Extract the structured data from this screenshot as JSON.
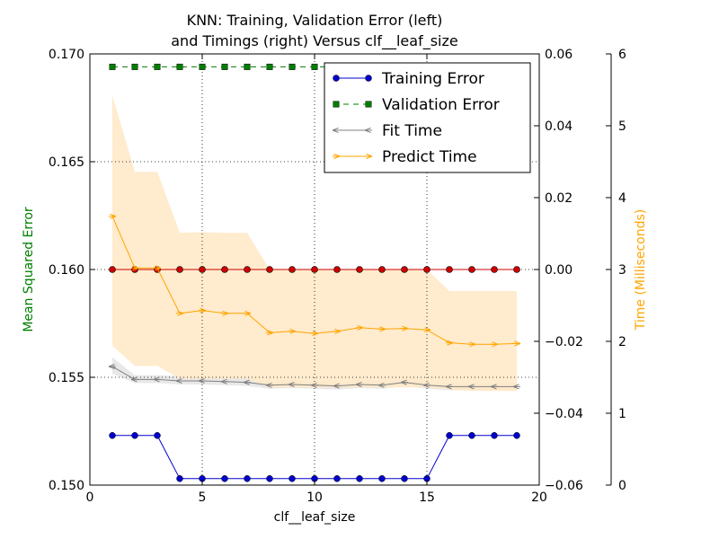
{
  "chart_data": {
    "type": "line",
    "title_lines": [
      "KNN: Training, Validation Error (left)",
      "and Timings (right) Versus clf__leaf_size"
    ],
    "xlabel": "clf__leaf_size",
    "ylabel_left": "Mean Squared Error",
    "ylabel_right": "Time (Milliseconds)",
    "xlim": [
      0,
      20
    ],
    "ylim_left": [
      0.15,
      0.17
    ],
    "ylim_middle": [
      -0.06,
      0.06
    ],
    "ylim_right": [
      0,
      6
    ],
    "x_ticks": [
      "0",
      "5",
      "10",
      "15",
      "20"
    ],
    "y_ticks_left": [
      "0.150",
      "0.155",
      "0.160",
      "0.165",
      "0.170"
    ],
    "y_ticks_middle": [
      "−0.06",
      "−0.04",
      "−0.02",
      "0.00",
      "0.02",
      "0.04",
      "0.06"
    ],
    "y_ticks_right": [
      "0",
      "1",
      "2",
      "3",
      "4",
      "5",
      "6"
    ],
    "grid": true,
    "legend_position": "top-right",
    "colors": {
      "training": "#0000cc",
      "validation": "#007f00",
      "fit": "#808080",
      "predict": "#ffa500",
      "band": "#ffe9c8",
      "zero_line": "#cc0000",
      "ylabel_left": "#008000",
      "ylabel_right": "#ffa500"
    },
    "x": [
      1,
      2,
      3,
      4,
      5,
      6,
      7,
      8,
      9,
      10,
      11,
      12,
      13,
      14,
      15,
      16,
      17,
      18,
      19
    ],
    "series": [
      {
        "name": "Training Error",
        "axis": "left",
        "values": [
          0.1523,
          0.1523,
          0.1523,
          0.1503,
          0.1503,
          0.1503,
          0.1503,
          0.1503,
          0.1503,
          0.1503,
          0.1503,
          0.1503,
          0.1503,
          0.1503,
          0.1503,
          0.1523,
          0.1523,
          0.1523,
          0.1523
        ]
      },
      {
        "name": "Validation Error",
        "axis": "left",
        "values": [
          0.1694,
          0.1694,
          0.1694,
          0.1694,
          0.1694,
          0.1694,
          0.1694,
          0.1694,
          0.1694,
          0.1694,
          0.1694,
          0.1694,
          0.1694,
          0.1694,
          0.1694,
          0.1694,
          0.1694,
          0.1694,
          0.1694
        ]
      },
      {
        "name": "Fit Time",
        "axis": "right",
        "values": [
          1.65,
          1.47,
          1.47,
          1.45,
          1.45,
          1.44,
          1.43,
          1.39,
          1.4,
          1.39,
          1.38,
          1.4,
          1.39,
          1.43,
          1.39,
          1.37,
          1.37,
          1.37,
          1.37
        ],
        "band_low": [
          1.55,
          1.42,
          1.42,
          1.4,
          1.4,
          1.39,
          1.38,
          1.34,
          1.35,
          1.34,
          1.33,
          1.35,
          1.34,
          1.38,
          1.34,
          1.32,
          1.32,
          1.32,
          1.32
        ],
        "band_high": [
          1.78,
          1.53,
          1.53,
          1.52,
          1.52,
          1.5,
          1.49,
          1.45,
          1.46,
          1.45,
          1.44,
          1.46,
          1.45,
          1.49,
          1.45,
          1.43,
          1.43,
          1.43,
          1.43
        ]
      },
      {
        "name": "Predict Time",
        "axis": "right",
        "values": [
          3.74,
          3.02,
          3.02,
          2.39,
          2.43,
          2.39,
          2.39,
          2.12,
          2.14,
          2.11,
          2.14,
          2.19,
          2.17,
          2.18,
          2.16,
          1.98,
          1.96,
          1.96,
          1.97
        ],
        "band_low": [
          1.94,
          1.66,
          1.66,
          1.48,
          1.48,
          1.48,
          1.48,
          1.36,
          1.36,
          1.36,
          1.36,
          1.36,
          1.36,
          1.36,
          1.36,
          1.33,
          1.31,
          1.31,
          1.31
        ],
        "band_high": [
          5.42,
          4.36,
          4.36,
          3.51,
          3.52,
          3.51,
          3.51,
          3.0,
          3.0,
          3.0,
          3.0,
          3.0,
          3.0,
          3.0,
          3.0,
          2.7,
          2.7,
          2.7,
          2.7
        ]
      }
    ],
    "reference_line": {
      "axis": "middle",
      "value": 0.0,
      "markers_at_x": [
        1,
        2,
        3,
        4,
        5,
        6,
        7,
        8,
        9,
        10,
        11,
        12,
        13,
        14,
        15,
        16,
        17,
        18,
        19
      ]
    }
  }
}
